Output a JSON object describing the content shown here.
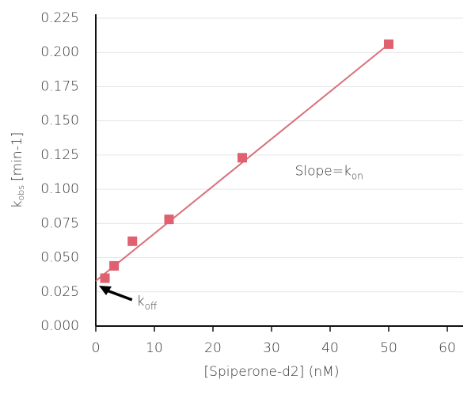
{
  "chart_data": {
    "type": "scatter",
    "x": [
      1.5625,
      3.125,
      6.25,
      12.5,
      25,
      50
    ],
    "values": [
      0.035,
      0.044,
      0.062,
      0.078,
      0.123,
      0.206
    ],
    "color": "#e0606f",
    "fit": {
      "x": [
        0,
        50
      ],
      "values": [
        0.033,
        0.206
      ],
      "color": "#d9707a"
    },
    "xlabel": "[Spiperone-d2] (nM)",
    "ylabel_parts": [
      "k",
      "obs",
      "[min-1]"
    ],
    "annotations": [
      {
        "text": "Slope=k",
        "sub": "on",
        "x": 34,
        "y": 0.113
      },
      {
        "text": "k",
        "sub": "off",
        "x": 7,
        "y": 0.018
      }
    ],
    "xlim": [
      0,
      60
    ],
    "xticks": [
      0,
      10,
      20,
      30,
      40,
      50,
      60
    ],
    "ylim": [
      0,
      0.225
    ],
    "yticks": [
      {
        "value": 0,
        "label": "0.000"
      },
      {
        "value": 0.025,
        "label": "0.025"
      },
      {
        "value": 0.05,
        "label": "0.050"
      },
      {
        "value": 0.075,
        "label": "0.075"
      },
      {
        "value": 0.1,
        "label": "0.100"
      },
      {
        "value": 0.125,
        "label": "0.125"
      },
      {
        "value": 0.15,
        "label": "0.150"
      },
      {
        "value": 0.175,
        "label": "0.175"
      },
      {
        "value": 0.2,
        "label": "0.200"
      },
      {
        "value": 0.225,
        "label": "0.225"
      }
    ],
    "grid": true
  }
}
